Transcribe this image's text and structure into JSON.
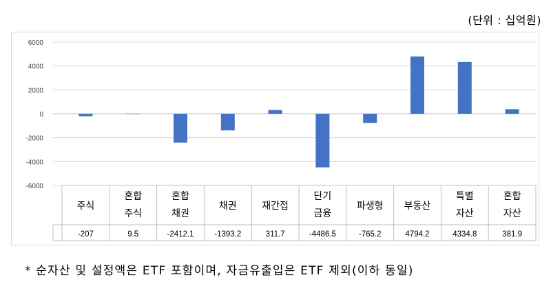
{
  "unit_label": "(단위 : 십억원)",
  "footnote": "* 순자산 및 설정액은 ETF 포함이며, 자금유출입은 ETF 제외(이하 동일)",
  "colors": {
    "bar": "#4472c4",
    "grid": "#d9d9d9",
    "axis": "#bfbfbf"
  },
  "chart_data": {
    "type": "bar",
    "categories": [
      [
        "주식"
      ],
      [
        "혼합",
        "주식"
      ],
      [
        "혼합",
        "채권"
      ],
      [
        "채권"
      ],
      [
        "재간접"
      ],
      [
        "단기",
        "금융"
      ],
      [
        "파생형"
      ],
      [
        "부동산"
      ],
      [
        "특별",
        "자산"
      ],
      [
        "혼합",
        "자산"
      ]
    ],
    "values": [
      -207,
      9.5,
      -2412.1,
      -1393.2,
      311.7,
      -4486.5,
      -765.2,
      4794.2,
      4334.8,
      381.9
    ],
    "value_labels": [
      "-207",
      "9.5",
      "-2412.1",
      "-1393.2",
      "311.7",
      "-4486.5",
      "-765.2",
      "4794.2",
      "4334.8",
      "381.9"
    ],
    "y_ticks": [
      6000,
      4000,
      2000,
      0,
      -2000,
      -4000,
      -6000
    ],
    "ylim": [
      -6000,
      6000
    ],
    "grid": true,
    "data_table": true
  }
}
